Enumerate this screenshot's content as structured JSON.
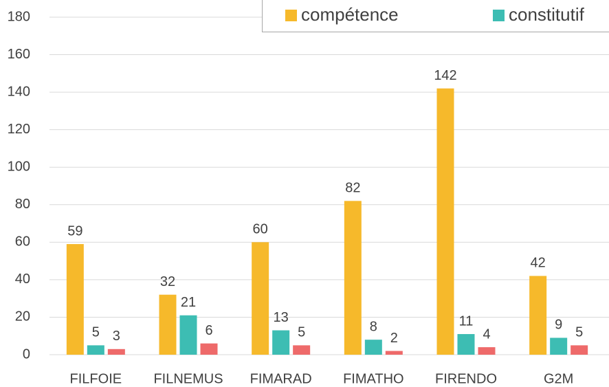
{
  "chart_data": {
    "type": "bar",
    "categories": [
      "FILFOIE",
      "FILNEMUS",
      "FIMARAD",
      "FIMATHO",
      "FIRENDO",
      "G2M"
    ],
    "series": [
      {
        "name": "compétence",
        "color": "#f6b92b",
        "values": [
          59,
          32,
          60,
          82,
          142,
          42
        ]
      },
      {
        "name": "constitutif",
        "color": "#3dbdb3",
        "values": [
          5,
          21,
          13,
          8,
          11,
          9
        ]
      },
      {
        "color": "#ee6a6a",
        "values": [
          3,
          6,
          5,
          2,
          4,
          5
        ]
      }
    ],
    "ylim": [
      0,
      180
    ],
    "yticks": [
      0,
      20,
      40,
      60,
      80,
      100,
      120,
      140,
      160,
      180
    ],
    "grid": true,
    "legend": "top-right"
  }
}
